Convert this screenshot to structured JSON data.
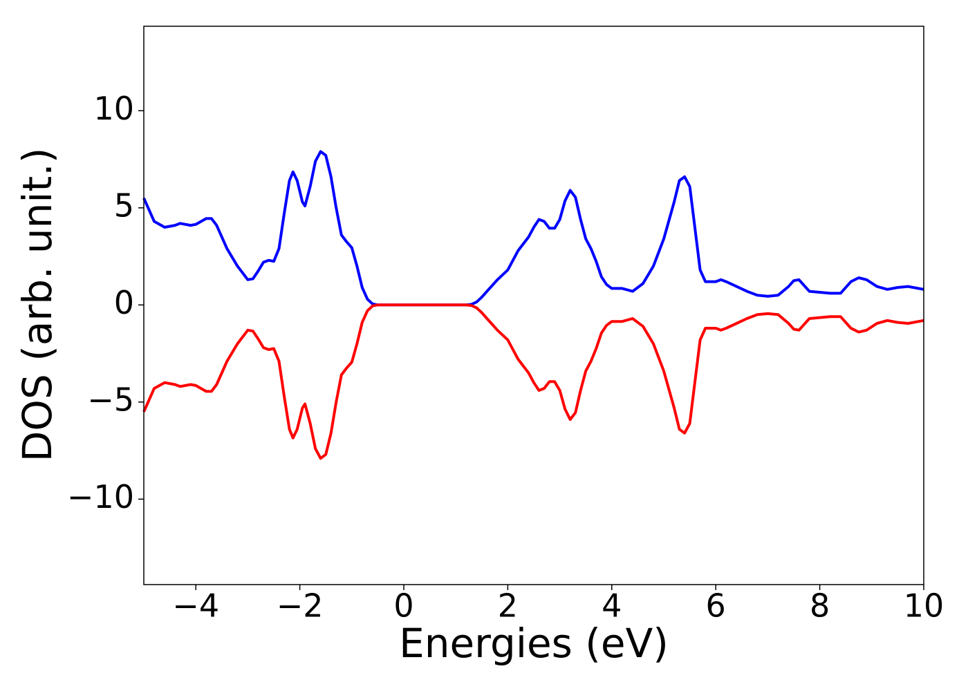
{
  "chart_data": {
    "type": "line",
    "xlabel": "Energies (eV)",
    "ylabel": "DOS (arb. unit.)",
    "x": [
      -5,
      -4.8,
      -4.6,
      -4.4,
      -4.3,
      -4.1,
      -4,
      -3.8,
      -3.7,
      -3.6,
      -3.4,
      -3.2,
      -3,
      -2.9,
      -2.8,
      -2.7,
      -2.6,
      -2.5,
      -2.4,
      -2.3,
      -2.2,
      -2.13,
      -2.05,
      -1.95,
      -1.9,
      -1.8,
      -1.7,
      -1.6,
      -1.5,
      -1.4,
      -1.3,
      -1.2,
      -1.1,
      -1,
      -0.9,
      -0.8,
      -0.7,
      -0.6,
      -0.5,
      0,
      1.2,
      1.3,
      1.4,
      1.5,
      1.6,
      1.8,
      2,
      2.2,
      2.4,
      2.5,
      2.6,
      2.7,
      2.8,
      2.9,
      3,
      3.1,
      3.2,
      3.3,
      3.4,
      3.5,
      3.6,
      3.7,
      3.8,
      3.9,
      4,
      4.2,
      4.4,
      4.6,
      4.8,
      5,
      5.2,
      5.3,
      5.4,
      5.5,
      5.6,
      5.7,
      5.8,
      6,
      6.1,
      6.2,
      6.4,
      6.6,
      6.8,
      7,
      7.2,
      7.4,
      7.5,
      7.6,
      7.7,
      7.8,
      8,
      8.2,
      8.4,
      8.6,
      8.75,
      8.9,
      9.1,
      9.3,
      9.5,
      9.7,
      10
    ],
    "series": [
      {
        "color": "#0000ff",
        "values": [
          5.5,
          4.3,
          4.0,
          4.1,
          4.2,
          4.1,
          4.15,
          4.45,
          4.45,
          4.1,
          2.9,
          2.0,
          1.3,
          1.35,
          1.75,
          2.2,
          2.3,
          2.25,
          2.9,
          4.7,
          6.4,
          6.85,
          6.4,
          5.3,
          5.1,
          6.1,
          7.4,
          7.9,
          7.7,
          6.6,
          5.0,
          3.6,
          3.25,
          2.95,
          2.0,
          0.9,
          0.3,
          0.05,
          0,
          0,
          0,
          0.03,
          0.15,
          0.4,
          0.7,
          1.3,
          1.8,
          2.8,
          3.5,
          4.0,
          4.4,
          4.3,
          3.95,
          3.95,
          4.4,
          5.35,
          5.9,
          5.55,
          4.4,
          3.4,
          2.9,
          2.25,
          1.45,
          1.05,
          0.85,
          0.85,
          0.7,
          1.1,
          2.0,
          3.4,
          5.3,
          6.4,
          6.6,
          6.1,
          3.95,
          1.8,
          1.2,
          1.2,
          1.3,
          1.2,
          0.95,
          0.7,
          0.5,
          0.45,
          0.5,
          0.95,
          1.25,
          1.3,
          1.0,
          0.7,
          0.65,
          0.6,
          0.6,
          1.2,
          1.4,
          1.3,
          0.95,
          0.8,
          0.9,
          0.95,
          0.8
        ]
      },
      {
        "color": "#ff0000",
        "values": [
          -5.5,
          -4.3,
          -4.0,
          -4.1,
          -4.2,
          -4.1,
          -4.15,
          -4.45,
          -4.45,
          -4.1,
          -2.9,
          -2.0,
          -1.3,
          -1.35,
          -1.75,
          -2.2,
          -2.3,
          -2.25,
          -2.9,
          -4.7,
          -6.4,
          -6.85,
          -6.4,
          -5.3,
          -5.1,
          -6.1,
          -7.4,
          -7.9,
          -7.7,
          -6.6,
          -5.0,
          -3.6,
          -3.25,
          -2.95,
          -2.0,
          -0.9,
          -0.3,
          -0.05,
          0,
          0,
          0,
          -0.03,
          -0.15,
          -0.4,
          -0.7,
          -1.3,
          -1.8,
          -2.8,
          -3.5,
          -4.0,
          -4.4,
          -4.3,
          -3.95,
          -3.95,
          -4.4,
          -5.35,
          -5.9,
          -5.55,
          -4.4,
          -3.4,
          -2.9,
          -2.25,
          -1.45,
          -1.05,
          -0.85,
          -0.85,
          -0.7,
          -1.1,
          -2.0,
          -3.4,
          -5.3,
          -6.4,
          -6.6,
          -6.1,
          -3.95,
          -1.8,
          -1.2,
          -1.2,
          -1.3,
          -1.2,
          -0.95,
          -0.7,
          -0.5,
          -0.45,
          -0.5,
          -0.95,
          -1.25,
          -1.3,
          -1.0,
          -0.7,
          -0.65,
          -0.6,
          -0.6,
          -1.2,
          -1.4,
          -1.3,
          -0.95,
          -0.8,
          -0.9,
          -0.95,
          -0.8
        ]
      }
    ],
    "xlim": [
      -5,
      10
    ],
    "xticks": [
      {
        "value": -4,
        "label": "−4"
      },
      {
        "value": -2,
        "label": "−2"
      },
      0,
      2,
      4,
      6,
      8,
      10
    ],
    "ylim": [
      -14.4,
      14.35
    ],
    "yticks": [
      {
        "value": -10,
        "label": "−10"
      },
      {
        "value": -5,
        "label": "−5"
      },
      0,
      5,
      10
    ]
  }
}
